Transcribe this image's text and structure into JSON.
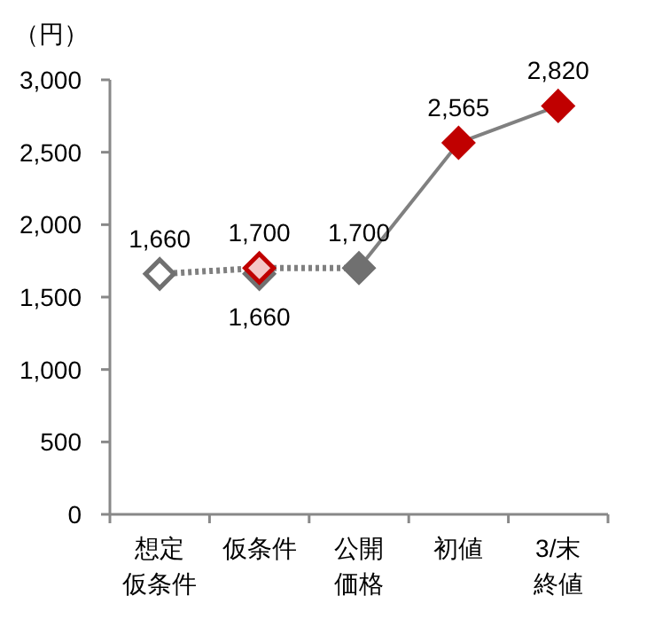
{
  "chart_data": {
    "type": "line",
    "ylabel": "（円）",
    "categories": [
      "想定仮条件",
      "仮条件",
      "公開価格",
      "初値",
      "3/末終値"
    ],
    "ylim": [
      0,
      3000
    ],
    "yticks": [
      {
        "value": 0,
        "label": "0"
      },
      {
        "value": 500,
        "label": "500"
      },
      {
        "value": 1000,
        "label": "1,000"
      },
      {
        "value": 1500,
        "label": "1,500"
      },
      {
        "value": 2000,
        "label": "2,000"
      },
      {
        "value": 2500,
        "label": "2,500"
      },
      {
        "value": 3000,
        "label": "3,000"
      }
    ],
    "grid": false,
    "series": [
      {
        "color": "#808080",
        "line_style": "dotted",
        "marker": "none",
        "values": [
          1660,
          1700,
          1700,
          null,
          null
        ]
      },
      {
        "color": "#808080",
        "line_style": "solid",
        "marker": "none",
        "values": [
          null,
          null,
          1700,
          2565,
          2820
        ]
      },
      {
        "type": "scatter",
        "color": "#707070",
        "marker": "diamond",
        "colors": [
          "#ffffff",
          "#707070",
          "#707070",
          null,
          null
        ],
        "values": [
          1660,
          1660,
          1700,
          null,
          null
        ],
        "value_labels": [
          "1,660",
          "1,660",
          "1,700",
          null,
          null
        ]
      },
      {
        "type": "scatter",
        "color": "#c00000",
        "marker": "diamond",
        "colors": [
          null,
          "#f4c7c7",
          null,
          "#c00000",
          "#c00000"
        ],
        "values": [
          null,
          1700,
          null,
          2565,
          2820
        ],
        "value_labels": [
          null,
          "1,700",
          null,
          "2,565",
          "2,820"
        ]
      }
    ]
  }
}
